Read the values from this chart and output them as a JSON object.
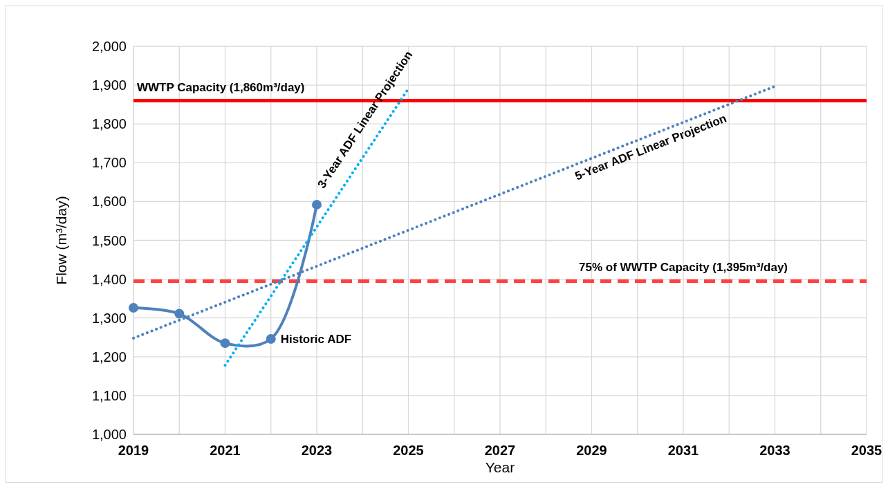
{
  "chart_data": {
    "type": "line",
    "xlabel": "Year",
    "ylabel": "Flow  (m³/day)",
    "xlim": [
      2019,
      2035
    ],
    "ylim": [
      1000,
      2000
    ],
    "xticks": [
      2019,
      {
        "value": 2020,
        "label": null
      },
      2021,
      {
        "value": 2022,
        "label": null
      },
      2023,
      {
        "value": 2024,
        "label": null
      },
      2025,
      {
        "value": 2026,
        "label": null
      },
      2027,
      {
        "value": 2028,
        "label": null
      },
      2029,
      {
        "value": 2030,
        "label": null
      },
      2031,
      {
        "value": 2032,
        "label": null
      },
      2033,
      {
        "value": 2034,
        "label": null
      },
      2035
    ],
    "yticks": [
      {
        "value": 1000,
        "label": "1,000"
      },
      {
        "value": 1100,
        "label": "1,100"
      },
      {
        "value": 1200,
        "label": "1,200"
      },
      {
        "value": 1300,
        "label": "1,300"
      },
      {
        "value": 1400,
        "label": "1,400"
      },
      {
        "value": 1500,
        "label": "1,500"
      },
      {
        "value": 1600,
        "label": "1,600"
      },
      {
        "value": 1700,
        "label": "1,700"
      },
      {
        "value": 1800,
        "label": "1,800"
      },
      {
        "value": 1900,
        "label": "1,900"
      },
      {
        "value": 2000,
        "label": "2,000"
      }
    ],
    "grid": true,
    "series": [
      {
        "name": "Historic ADF",
        "color": "#4f81bd",
        "x": [
          2019,
          2020,
          2021,
          2022,
          2023
        ],
        "values": [
          1326,
          1311,
          1235,
          1246,
          1592
        ],
        "marker": "circle",
        "line_style": "solid"
      },
      {
        "name": "3-Year ADF Linear Projection",
        "color": "#00b0f0",
        "x": [
          2021,
          2025
        ],
        "values": [
          1178,
          1891
        ],
        "marker": "none",
        "line_style": "dotted"
      },
      {
        "name": "5-Year ADF Linear Projection",
        "color": "#4f81bd",
        "x": [
          2019,
          2033
        ],
        "values": [
          1248,
          1897
        ],
        "marker": "none",
        "line_style": "dotted"
      }
    ],
    "ref_lines": [
      {
        "axis": "y",
        "value": 1860,
        "label": "WWTP Capacity (1,860m³/day)",
        "color": "#ff0000",
        "line_style": "solid"
      },
      {
        "axis": "y",
        "value": 1395,
        "label": "75% of WWTP Capacity (1,395m³/day)",
        "color": "#ff4040",
        "line_style": "dashed"
      }
    ]
  }
}
